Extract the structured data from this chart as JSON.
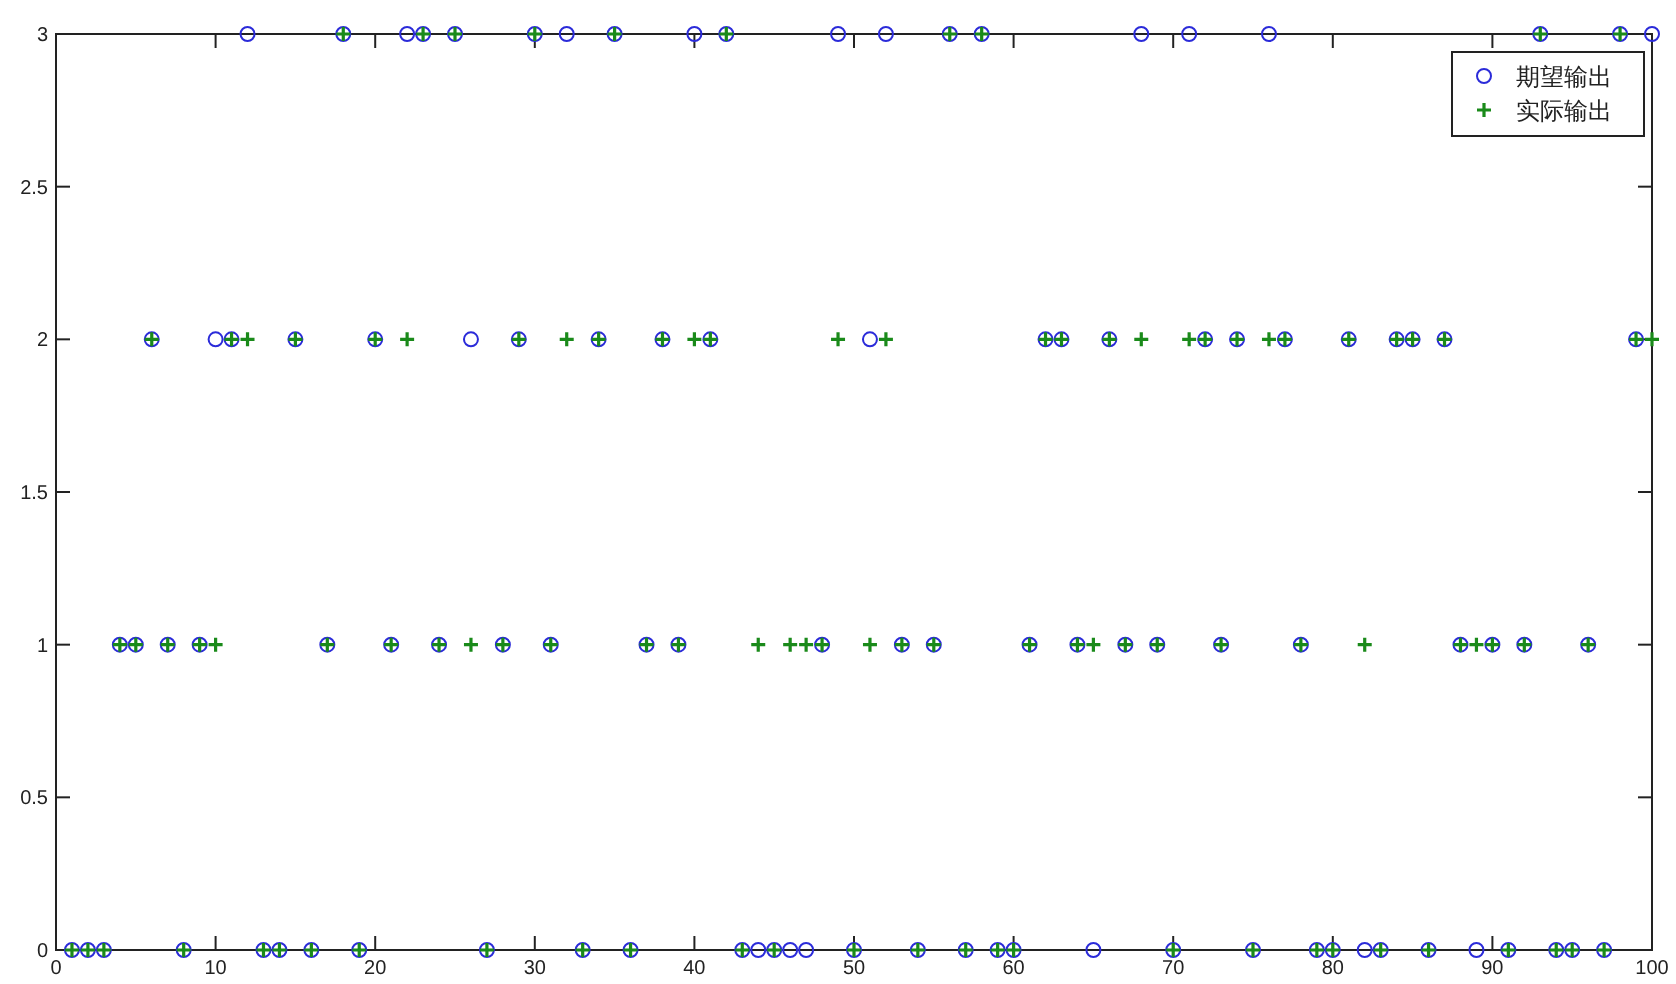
{
  "chart_data": {
    "type": "scatter",
    "x": [
      1,
      2,
      3,
      4,
      5,
      6,
      7,
      8,
      9,
      10,
      11,
      12,
      13,
      14,
      15,
      16,
      17,
      18,
      19,
      20,
      21,
      22,
      23,
      24,
      25,
      26,
      27,
      28,
      29,
      30,
      31,
      32,
      33,
      34,
      35,
      36,
      37,
      38,
      39,
      40,
      41,
      42,
      43,
      44,
      45,
      46,
      47,
      48,
      49,
      50,
      51,
      52,
      53,
      54,
      55,
      56,
      57,
      58,
      59,
      60,
      61,
      62,
      63,
      64,
      65,
      66,
      67,
      68,
      69,
      70,
      71,
      72,
      73,
      74,
      75,
      76,
      77,
      78,
      79,
      80,
      81,
      82,
      83,
      84,
      85,
      86,
      87,
      88,
      89,
      90,
      91,
      92,
      93,
      94,
      95,
      96,
      97,
      98,
      99,
      100
    ],
    "series": [
      {
        "name": "期望输出",
        "color": "#2b2bd9",
        "marker": "circle",
        "values": [
          0,
          0,
          0,
          1,
          1,
          2,
          1,
          0,
          1,
          2,
          2,
          3,
          0,
          0,
          2,
          0,
          1,
          3,
          0,
          2,
          1,
          3,
          3,
          1,
          3,
          2,
          0,
          1,
          2,
          3,
          1,
          3,
          0,
          2,
          3,
          0,
          1,
          2,
          1,
          3,
          2,
          3,
          0,
          0,
          0,
          0,
          0,
          1,
          3,
          0,
          2,
          3,
          1,
          0,
          1,
          3,
          0,
          3,
          0,
          0,
          1,
          2,
          2,
          1,
          0,
          2,
          1,
          3,
          1,
          0,
          3,
          2,
          1,
          2,
          0,
          3,
          2,
          1,
          0,
          0,
          2,
          0,
          0,
          2,
          2,
          0,
          2,
          1,
          0,
          1,
          0,
          1,
          3,
          0,
          0,
          1,
          0,
          3,
          2,
          3
        ]
      },
      {
        "name": "实际输出",
        "color": "#1a8a1a",
        "marker": "cross",
        "values": [
          0,
          0,
          0,
          1,
          1,
          2,
          1,
          0,
          1,
          1,
          2,
          2,
          0,
          0,
          2,
          0,
          1,
          3,
          0,
          2,
          1,
          2,
          3,
          1,
          3,
          1,
          0,
          1,
          2,
          3,
          1,
          2,
          0,
          2,
          3,
          0,
          1,
          2,
          1,
          2,
          2,
          3,
          0,
          1,
          0,
          1,
          1,
          1,
          2,
          0,
          1,
          2,
          1,
          0,
          1,
          3,
          0,
          3,
          0,
          0,
          1,
          2,
          2,
          1,
          1,
          2,
          1,
          2,
          1,
          0,
          2,
          2,
          1,
          2,
          0,
          2,
          2,
          1,
          0,
          0,
          2,
          1,
          0,
          2,
          2,
          0,
          2,
          1,
          1,
          1,
          0,
          1,
          3,
          0,
          0,
          1,
          0,
          3,
          2,
          2
        ]
      }
    ],
    "xlim": [
      0,
      100
    ],
    "ylim": [
      0,
      3
    ],
    "xticks": [
      0,
      10,
      20,
      30,
      40,
      50,
      60,
      70,
      80,
      90,
      100
    ],
    "yticks": [
      0,
      0.5,
      1,
      1.5,
      2,
      2.5,
      3
    ],
    "legend": "top right"
  }
}
